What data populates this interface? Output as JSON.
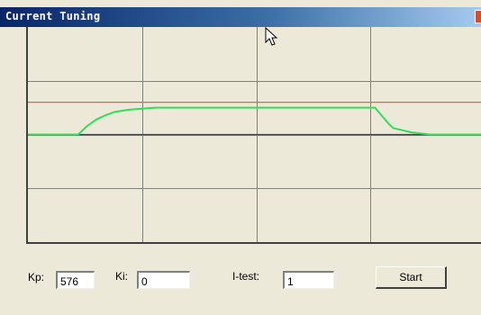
{
  "window": {
    "title": "Current Tuning"
  },
  "icons": {
    "close": "close-icon",
    "cursor": "mouse-pointer-icon"
  },
  "colors": {
    "window_bg": "#ece9d8",
    "titlebar_start": "#0a246a",
    "titlebar_end": "#a6caf0",
    "grid": "#808080",
    "setpoint_line": "#e0683a",
    "baseline": "#3a3a6a",
    "response_trace": "#33dd55"
  },
  "controls": {
    "kp_label": "Kp:",
    "kp_value": "576",
    "ki_label": "Ki:",
    "ki_value": "0",
    "itest_label": "I-test:",
    "itest_value": "1",
    "start_label": "Start"
  },
  "chart_data": {
    "type": "line",
    "title": "",
    "xlabel": "",
    "ylabel": "",
    "xlim": [
      0,
      100
    ],
    "ylim": [
      0,
      2
    ],
    "grid": true,
    "grid_divisions": {
      "x": 4,
      "y": 4
    },
    "setpoint": 1.3,
    "baseline": 1.0,
    "series": [
      {
        "x": [
          0,
          8,
          11,
          13,
          15,
          17,
          19,
          22,
          25,
          28,
          32,
          40,
          50,
          60,
          70,
          76,
          77,
          78,
          79,
          80,
          82,
          84,
          86,
          88,
          90,
          93,
          96,
          100
        ],
        "values": [
          1.0,
          1.0,
          1.0,
          1.08,
          1.14,
          1.18,
          1.21,
          1.23,
          1.24,
          1.25,
          1.25,
          1.25,
          1.25,
          1.25,
          1.25,
          1.25,
          1.2,
          1.15,
          1.1,
          1.06,
          1.04,
          1.02,
          1.01,
          1.0,
          1.0,
          1.0,
          1.0,
          1.0
        ]
      }
    ]
  }
}
